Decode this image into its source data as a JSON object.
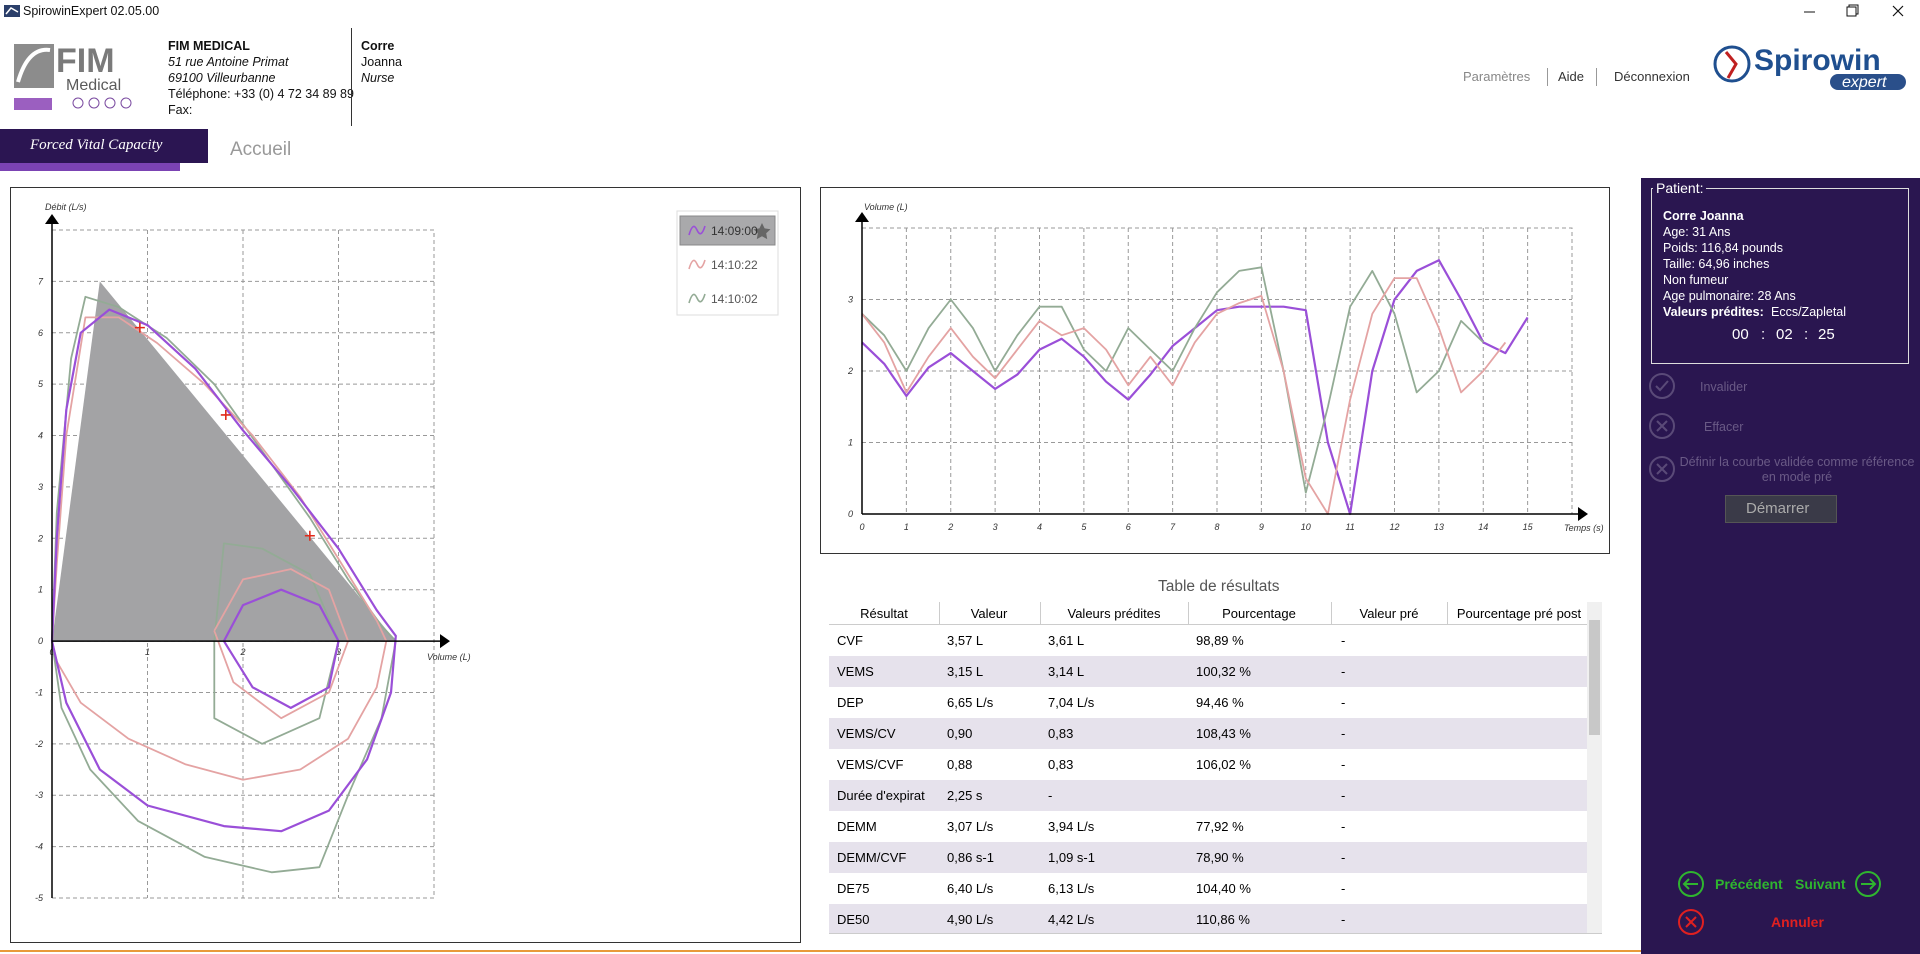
{
  "window": {
    "title": "SpirowinExpert 02.05.00"
  },
  "header": {
    "logo": {
      "name": "FIM",
      "sub": "Medical"
    },
    "company": {
      "name": "FIM MEDICAL",
      "street": "51 rue Antoine Primat",
      "city": "69100 Villeurbanne",
      "phone": "Téléphone: +33 (0) 4 72 34 89 89",
      "fax": "Fax:"
    },
    "user": {
      "last_name": "Corre",
      "first_name": "Joanna",
      "role": "Nurse"
    },
    "links": [
      "Paramètres",
      "Aide",
      "Déconnexion"
    ],
    "brand": {
      "name": "Spirowin",
      "sub": "expert"
    }
  },
  "tabs": {
    "active": "Forced Vital Capacity",
    "other": "Accueil"
  },
  "chart_data": [
    {
      "type": "line",
      "y_label": "Débit (L/s)",
      "x_label": "Volume (L)",
      "xlim": [
        0,
        4
      ],
      "ylim": [
        -5,
        8
      ],
      "xticks": [
        0,
        1,
        2,
        3
      ],
      "yticks": [
        -5,
        -4,
        -3,
        -2,
        -1,
        0,
        1,
        2,
        3,
        4,
        5,
        6,
        7
      ],
      "grid": true,
      "predicted_area": {
        "x": [
          0,
          0.5,
          3.6
        ],
        "y": [
          0,
          7,
          0
        ],
        "color": "#a3a3a5"
      },
      "markers": {
        "x": [
          0.92,
          1.82,
          2.7
        ],
        "y": [
          6.1,
          4.4,
          2.05
        ],
        "color": "#e02a1a"
      },
      "legend_selected": 0,
      "series": [
        {
          "name": "14:09:00",
          "color": "#9a4fd8",
          "x": [
            0,
            0.05,
            0.15,
            0.3,
            0.6,
            1.0,
            1.5,
            2.0,
            2.5,
            3.0,
            3.4,
            3.6,
            3.55,
            3.3,
            2.9,
            2.4,
            1.8,
            1.0,
            0.5,
            0.15,
            0,
            null,
            1.8,
            2.0,
            2.4,
            2.8,
            3.0,
            2.9,
            2.5,
            2.1,
            1.8
          ],
          "values": [
            0,
            2,
            4.5,
            6.0,
            6.45,
            6.15,
            5.3,
            4.1,
            3.0,
            1.8,
            0.6,
            0.1,
            -1.0,
            -2.3,
            -3.3,
            -3.7,
            -3.6,
            -3.2,
            -2.5,
            -1.2,
            0,
            null,
            0,
            0.7,
            1.0,
            0.7,
            0,
            -0.9,
            -1.3,
            -0.9,
            0
          ]
        },
        {
          "name": "14:10:22",
          "color": "#e4a3a3",
          "x": [
            0,
            0.05,
            0.15,
            0.35,
            0.7,
            1.1,
            1.6,
            2.1,
            2.6,
            3.0,
            3.4,
            3.5,
            3.4,
            3.1,
            2.6,
            2.0,
            1.4,
            0.8,
            0.3,
            0.05,
            0,
            null,
            1.7,
            2.0,
            2.5,
            2.9,
            3.1,
            2.9,
            2.4,
            1.9,
            1.7
          ],
          "values": [
            0,
            1.5,
            4.0,
            6.3,
            6.3,
            5.8,
            5.0,
            4.0,
            2.8,
            1.6,
            0.4,
            0,
            -0.9,
            -1.9,
            -2.5,
            -2.7,
            -2.4,
            -1.9,
            -1.2,
            -0.4,
            0,
            null,
            0.2,
            1.2,
            1.4,
            1.0,
            0,
            -1.0,
            -1.5,
            -0.8,
            0.2
          ]
        },
        {
          "name": "14:10:02",
          "color": "#93ab95",
          "x": [
            0,
            0.05,
            0.2,
            0.35,
            0.7,
            1.2,
            1.7,
            2.2,
            2.7,
            3.1,
            3.45,
            3.6,
            3.45,
            3.1,
            2.8,
            2.3,
            1.6,
            0.9,
            0.4,
            0.1,
            0,
            null,
            1.7,
            1.8,
            2.2,
            2.7,
            3.0,
            2.8,
            2.2,
            1.7,
            1.7
          ],
          "values": [
            0,
            2.5,
            5.5,
            6.7,
            6.5,
            5.9,
            5.0,
            3.7,
            2.4,
            1.2,
            0.3,
            0,
            -1.5,
            -3.0,
            -4.4,
            -4.5,
            -4.2,
            -3.5,
            -2.5,
            -1.3,
            0,
            null,
            0,
            1.9,
            1.8,
            1.3,
            0,
            -1.5,
            -2.0,
            -1.5,
            0
          ]
        }
      ]
    },
    {
      "type": "line",
      "y_label": "Volume (L)",
      "x_label": "Temps (s)",
      "xlim": [
        0,
        16
      ],
      "ylim": [
        0,
        4
      ],
      "xticks": [
        0,
        1,
        2,
        3,
        4,
        5,
        6,
        7,
        8,
        9,
        10,
        11,
        12,
        13,
        14,
        15
      ],
      "yticks": [
        0,
        1,
        2,
        3
      ],
      "grid": true,
      "series": [
        {
          "name": "14:10:22",
          "color": "#e4a3a3",
          "x": [
            0,
            0.5,
            1,
            1.5,
            2,
            2.5,
            3,
            3.5,
            4,
            4.5,
            5,
            5.5,
            6,
            6.5,
            7,
            7.5,
            8,
            8.5,
            9,
            9.5,
            10,
            10.5,
            11,
            11.5,
            12,
            12.5,
            13,
            13.5,
            14,
            14.5
          ],
          "values": [
            2.8,
            2.4,
            1.7,
            2.2,
            2.6,
            2.2,
            1.9,
            2.3,
            2.7,
            2.5,
            2.6,
            2.3,
            1.8,
            2.2,
            1.8,
            2.4,
            2.8,
            2.95,
            3.05,
            2.0,
            0.5,
            0,
            1.6,
            2.8,
            3.3,
            3.3,
            2.6,
            1.7,
            2.0,
            2.4
          ]
        },
        {
          "name": "14:10:02",
          "color": "#93ab95",
          "x": [
            0,
            0.5,
            1,
            1.5,
            2,
            2.5,
            3,
            3.5,
            4,
            4.5,
            5,
            5.5,
            6,
            6.5,
            7,
            7.5,
            8,
            8.5,
            9,
            9.5,
            10,
            10.5,
            11,
            11.5,
            12,
            12.5,
            13,
            13.5,
            14
          ],
          "values": [
            2.8,
            2.5,
            2.0,
            2.6,
            3.0,
            2.6,
            2.0,
            2.5,
            2.9,
            2.9,
            2.3,
            2.0,
            2.6,
            2.3,
            2.0,
            2.6,
            3.1,
            3.4,
            3.45,
            2.0,
            0.3,
            1.5,
            2.9,
            3.4,
            2.8,
            1.7,
            2.0,
            2.7,
            2.4
          ]
        },
        {
          "name": "14:09:00",
          "color": "#9a4fd8",
          "x": [
            0,
            0.5,
            1,
            1.5,
            2,
            2.5,
            3,
            3.5,
            4,
            4.5,
            5,
            5.5,
            6,
            6.5,
            7,
            7.5,
            8,
            8.5,
            9,
            9.5,
            10,
            10.5,
            11,
            11.5,
            12,
            12.5,
            13,
            13.5,
            14,
            14.5,
            15
          ],
          "values": [
            2.4,
            2.1,
            1.65,
            2.05,
            2.25,
            2.0,
            1.75,
            1.95,
            2.3,
            2.45,
            2.2,
            1.85,
            1.6,
            1.95,
            2.35,
            2.6,
            2.85,
            2.9,
            2.9,
            2.9,
            2.85,
            1.0,
            0,
            2.0,
            3.0,
            3.4,
            3.55,
            3.0,
            2.4,
            2.25,
            2.75
          ]
        }
      ]
    }
  ],
  "table": {
    "title": "Table de résultats",
    "columns": [
      "Résultat",
      "Valeur",
      "Valeurs prédites",
      "Pourcentage",
      "Valeur pré",
      "Pourcentage pré post"
    ],
    "rows": [
      [
        "CVF",
        "3,57 L",
        "3,61 L",
        "98,89 %",
        "-"
      ],
      [
        "VEMS",
        "3,15 L",
        "3,14 L",
        "100,32 %",
        "-"
      ],
      [
        "DEP",
        "6,65 L/s",
        "7,04 L/s",
        "94,46 %",
        "-"
      ],
      [
        "VEMS/CV",
        "0,90",
        "0,83",
        "108,43 %",
        "-"
      ],
      [
        "VEMS/CVF",
        "0,88",
        "0,83",
        "106,02 %",
        "-"
      ],
      [
        "Durée d'expiration",
        "2,25 s",
        "-",
        null,
        "-"
      ],
      [
        "DEMM",
        "3,07 L/s",
        "3,94 L/s",
        "77,92 %",
        "-"
      ],
      [
        "DEMM/CVF",
        "0,86 s-1",
        "1,09 s-1",
        "78,90 %",
        "-"
      ],
      [
        "DE75",
        "6,40 L/s",
        "6,13 L/s",
        "104,40 %",
        "-"
      ],
      [
        "DE50",
        "4,90 L/s",
        "4,42 L/s",
        "110,86 %",
        "-"
      ]
    ]
  },
  "sidebar": {
    "patient": {
      "heading": "Patient:",
      "name": "Corre Joanna",
      "age": "Age: 31 Ans",
      "weight": "Poids: 116,84 pounds",
      "height": "Taille: 64,96 inches",
      "smoker": "Non fumeur",
      "lung_age": "Age pulmonaire: 28 Ans",
      "predicted_label": "Valeurs prédites:",
      "predicted_value": "Eccs/Zapletal"
    },
    "timer": [
      "00",
      ":",
      "02",
      ":",
      "25"
    ],
    "actions": [
      "Invalider",
      "Effacer",
      "Définir la courbe validée comme référence en mode pré"
    ],
    "start": "Démarrer",
    "nav": {
      "previous": "Précédent",
      "next": "Suivant",
      "cancel": "Annuler"
    }
  }
}
